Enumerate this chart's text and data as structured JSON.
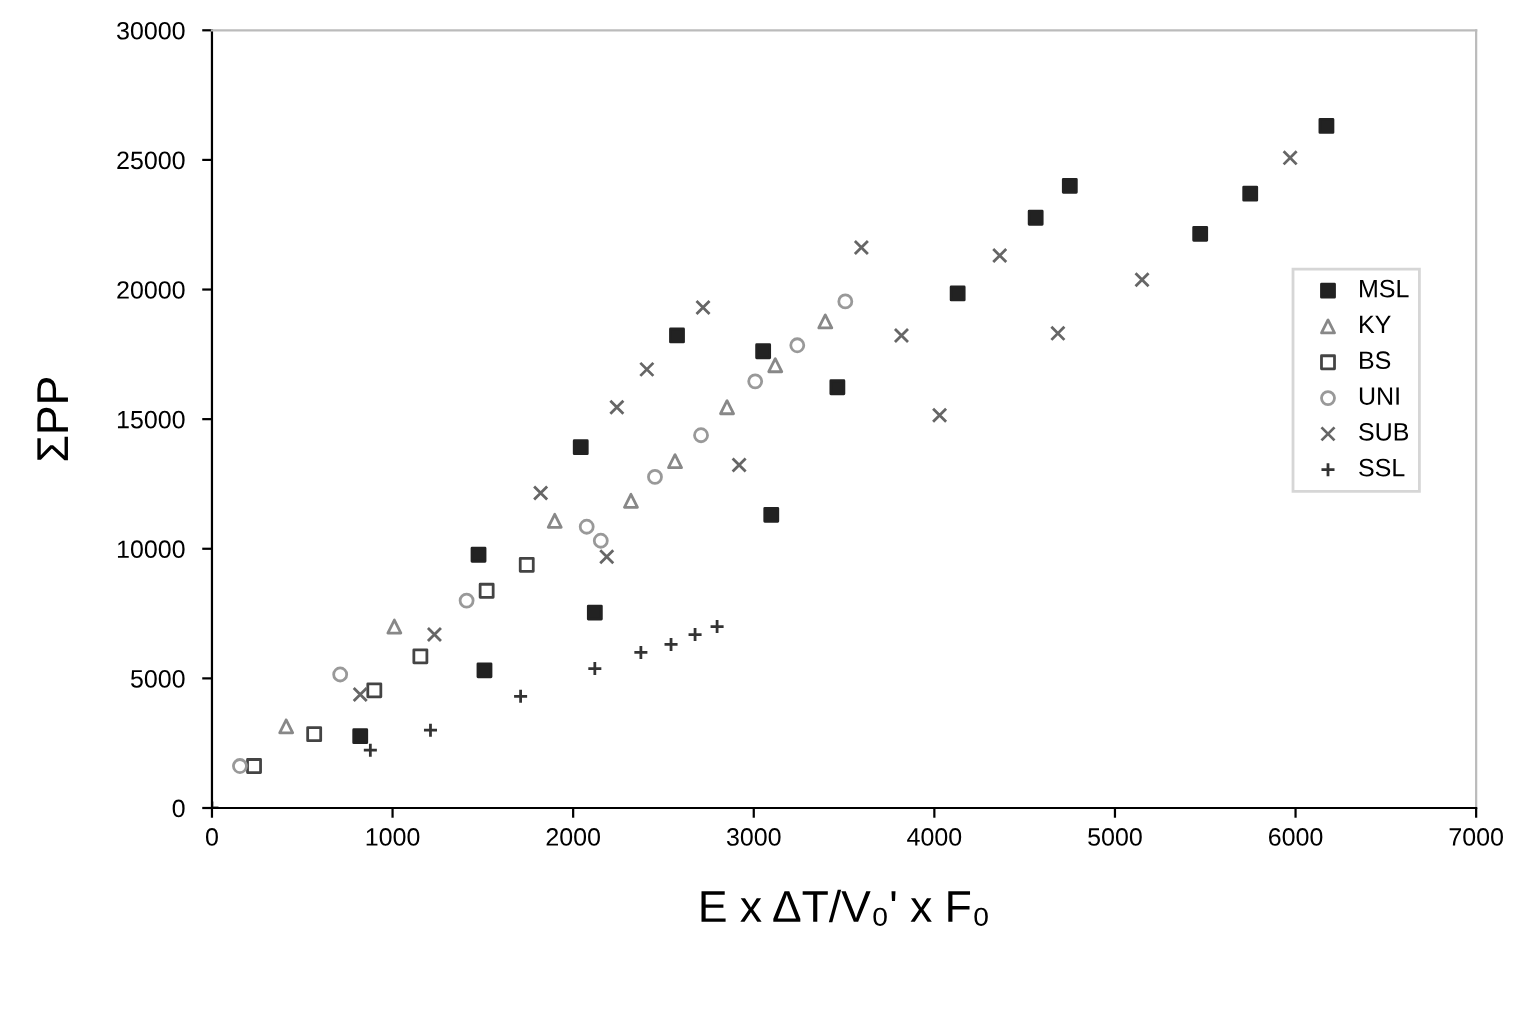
{
  "chart_data": {
    "type": "scatter",
    "xlabel": "E x ΔT/V₀' x F₀",
    "ylabel": "ΣPP",
    "xlim": [
      0,
      7000
    ],
    "xticks": [
      0,
      1000,
      2000,
      3000,
      4000,
      5000,
      6000,
      7000
    ],
    "ylim": [
      0,
      30000
    ],
    "yticks": [
      0,
      5000,
      10000,
      15000,
      20000,
      25000,
      30000
    ],
    "grid": false,
    "legend": "right",
    "series": [
      {
        "name": "MSL",
        "color": "#222222",
        "marker": "square",
        "x": [
          821,
          1509,
          1476,
          2120,
          2042,
          2575,
          3052,
          3097,
          3463,
          4129,
          4561,
          4750,
          5472,
          5749,
          6171
        ],
        "values": [
          2770,
          5310,
          9770,
          7540,
          13920,
          18230,
          17620,
          11310,
          16230,
          19850,
          22770,
          24000,
          22150,
          23700,
          26310
        ]
      },
      {
        "name": "KY",
        "color": "#888888",
        "marker": "triangle",
        "x": [
          411,
          1010,
          1898,
          2320,
          2564,
          2852,
          3119,
          3396
        ],
        "values": [
          3150,
          7000,
          11080,
          11850,
          13380,
          15460,
          17080,
          18770
        ]
      },
      {
        "name": "BS",
        "color": "#444444",
        "marker": "square",
        "x": [
          233,
          566,
          899,
          1154,
          1521,
          1743
        ],
        "values": [
          1620,
          2850,
          4540,
          5850,
          8380,
          9380
        ]
      },
      {
        "name": "UNI",
        "color": "#999999",
        "marker": "circle",
        "x": [
          155,
          710,
          1410,
          2075,
          2153,
          2453,
          2708,
          3008,
          3241,
          3507
        ],
        "values": [
          1620,
          5150,
          8000,
          10850,
          10310,
          12770,
          14380,
          16460,
          17850,
          19540
        ]
      },
      {
        "name": "SUB",
        "color": "#666666",
        "marker": "cross",
        "x": [
          821,
          1232,
          1820,
          2186,
          2242,
          2408,
          2719,
          2919,
          3596,
          3818,
          4029,
          4362,
          4684,
          5150,
          5970
        ],
        "values": [
          4380,
          6690,
          12150,
          9690,
          15460,
          16920,
          19310,
          13230,
          21620,
          18230,
          15150,
          21310,
          18310,
          20380,
          25080
        ]
      },
      {
        "name": "SSL",
        "color": "#333333",
        "marker": "plus",
        "x": [
          0,
          877,
          1210,
          1709,
          2120,
          2375,
          2542,
          2675,
          2797
        ],
        "values": [
          0,
          2230,
          3000,
          4310,
          5380,
          6000,
          6310,
          6690,
          7000
        ]
      }
    ]
  }
}
